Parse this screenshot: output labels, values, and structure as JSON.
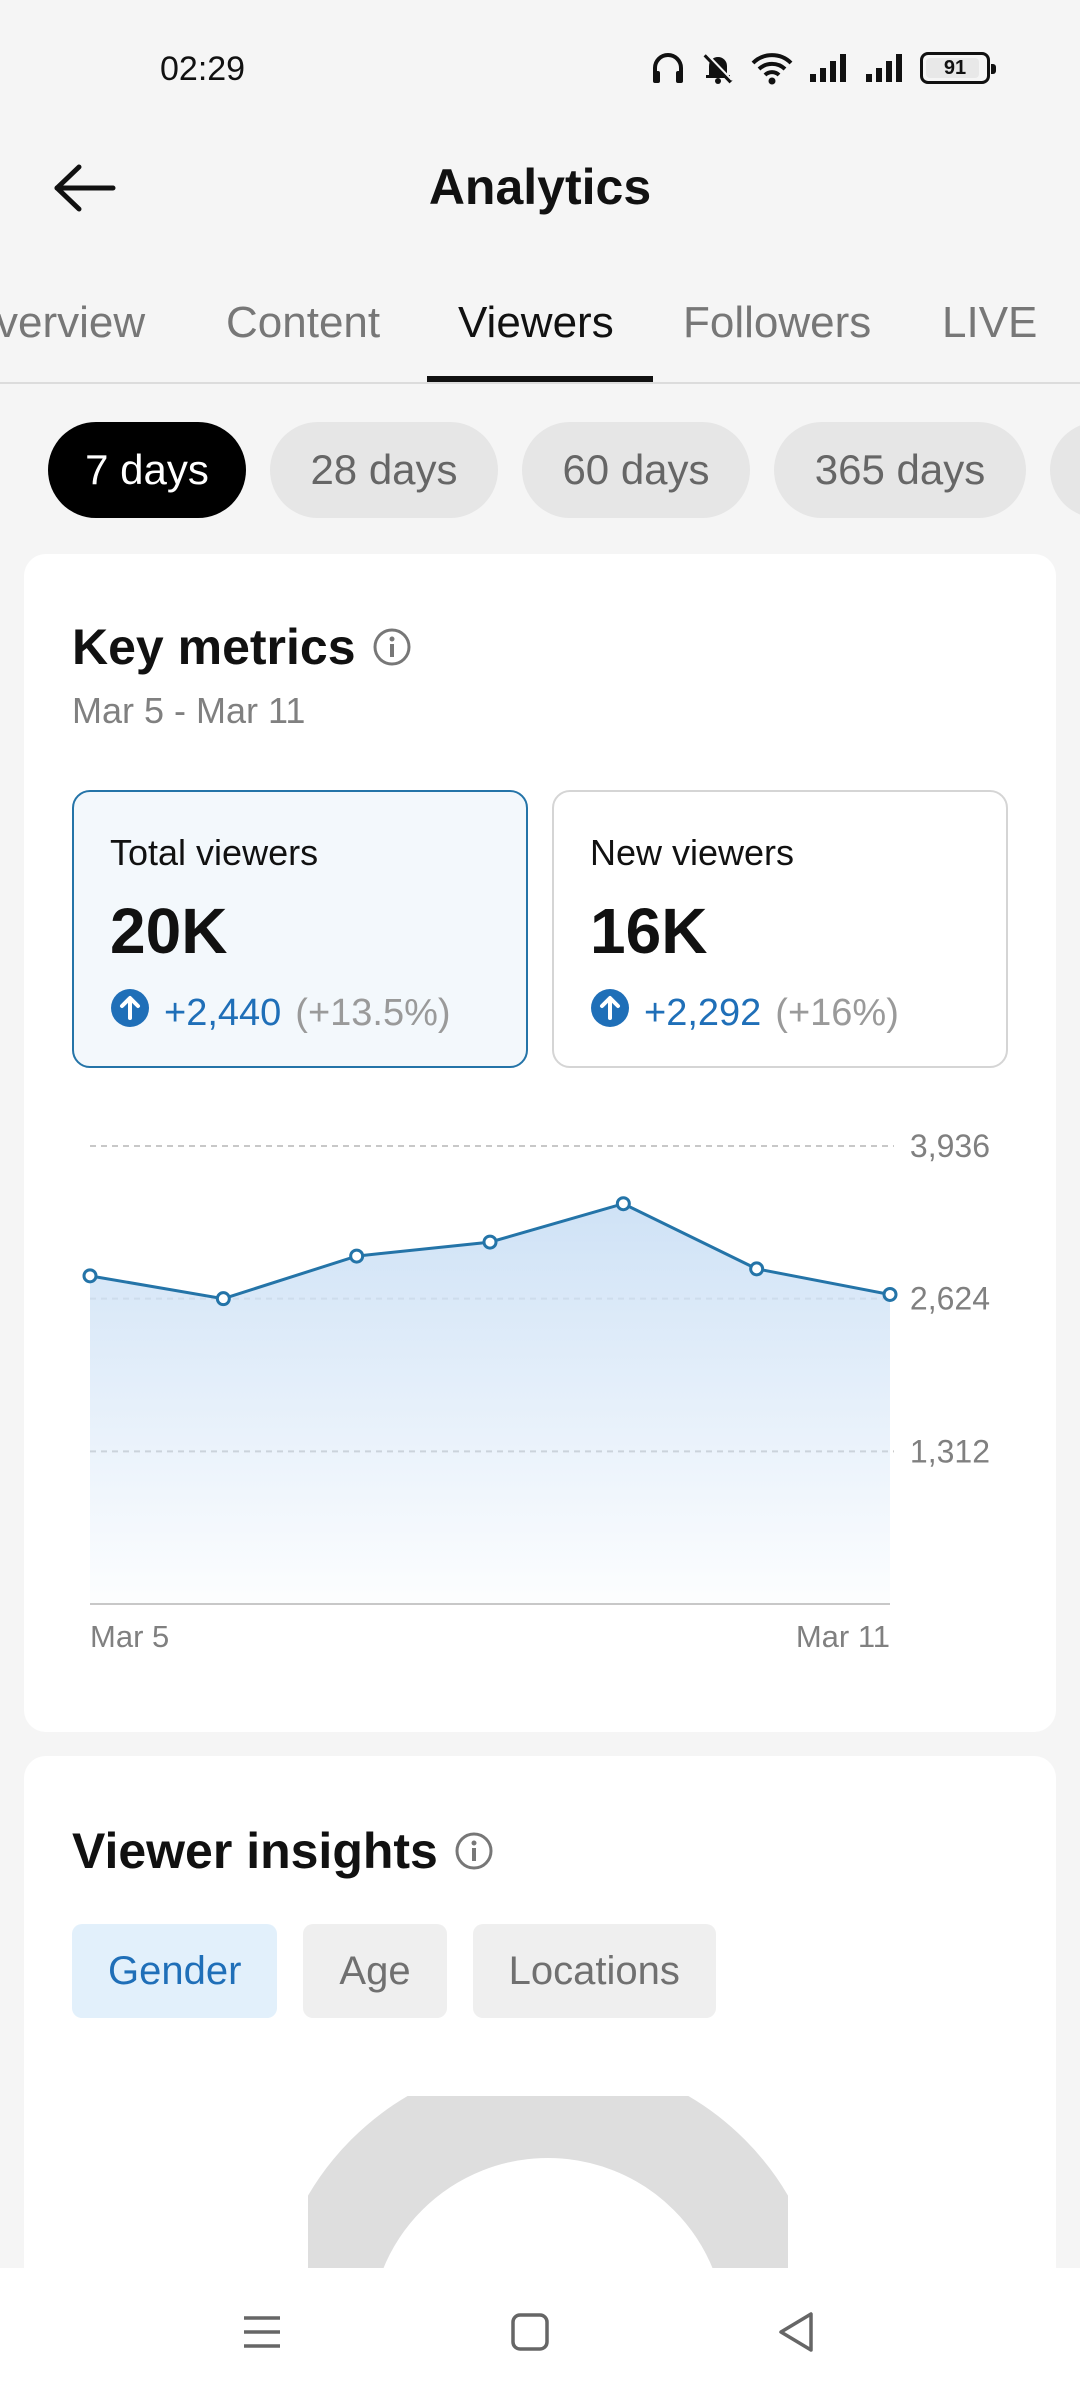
{
  "status_bar": {
    "time": "02:29",
    "battery": "91",
    "icons": [
      "headphones-icon",
      "bell-muted-icon",
      "wifi-icon",
      "signal-icon",
      "signal-icon",
      "battery-icon"
    ]
  },
  "header": {
    "title": "Analytics",
    "back_icon": "arrow-left-icon"
  },
  "tabs": [
    {
      "label": "Overview",
      "visible_text": "verview"
    },
    {
      "label": "Content"
    },
    {
      "label": "Viewers",
      "active": true
    },
    {
      "label": "Followers"
    },
    {
      "label": "LIVE"
    }
  ],
  "ranges": [
    {
      "label": "7 days",
      "active": true
    },
    {
      "label": "28 days"
    },
    {
      "label": "60 days"
    },
    {
      "label": "365 days"
    }
  ],
  "key_metrics": {
    "title": "Key metrics",
    "date_range": "Mar 5 - Mar 11",
    "cards": [
      {
        "label": "Total viewers",
        "value": "20K",
        "change": "+2,440",
        "change_pct": "(+13.5%)",
        "selected": true
      },
      {
        "label": "New viewers",
        "value": "16K",
        "change": "+2,292",
        "change_pct": "(+16%)"
      }
    ]
  },
  "chart_data": {
    "type": "area",
    "x": [
      "Mar 5",
      "Mar 6",
      "Mar 7",
      "Mar 8",
      "Mar 9",
      "Mar 10",
      "Mar 11"
    ],
    "series": [
      {
        "name": "Total viewers",
        "values": [
          2820,
          2624,
          2990,
          3110,
          3440,
          2880,
          2660
        ]
      }
    ],
    "ylim": [
      0,
      3936
    ],
    "yticks": [
      "3,936",
      "2,624",
      "1,312"
    ],
    "xtick_labels": [
      "Mar 5",
      "Mar 11"
    ],
    "line_color": "#2474a8",
    "fill_color": "#cfe2f6",
    "grid": true
  },
  "viewer_insights": {
    "title": "Viewer insights",
    "tabs": [
      {
        "label": "Gender",
        "active": true
      },
      {
        "label": "Age"
      },
      {
        "label": "Locations"
      }
    ]
  },
  "nav_bar": {
    "icons": [
      "menu-icon",
      "home-square-icon",
      "back-triangle-icon"
    ]
  }
}
